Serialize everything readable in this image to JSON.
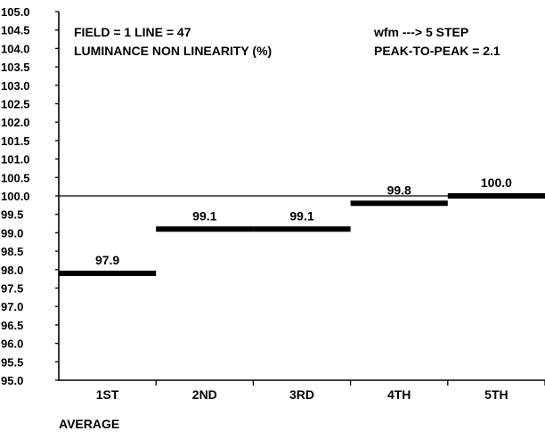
{
  "header": {
    "line1_left": "FIELD = 1 LINE = 47",
    "line2_left": "LUMINANCE NON LINEARITY (%)",
    "line1_right": "wfm ---> 5 STEP",
    "line2_right": "PEAK-TO-PEAK = 2.1"
  },
  "footer": {
    "label": "AVERAGE"
  },
  "colors": {
    "background": "#ffffff",
    "ink": "#000000"
  },
  "chart_data": {
    "type": "bar",
    "style": "step-level bars (horizontal level per category)",
    "categories": [
      "1ST",
      "2ND",
      "3RD",
      "4TH",
      "5TH"
    ],
    "values": [
      97.9,
      99.1,
      99.1,
      99.8,
      100.0
    ],
    "value_labels": [
      "97.9",
      "99.1",
      "99.1",
      "99.8",
      "100.0"
    ],
    "ylim": [
      95.0,
      105.0
    ],
    "y_tick_step": 0.5,
    "y_ticks": [
      "95.0",
      "95.5",
      "96.0",
      "96.5",
      "97.0",
      "97.5",
      "98.0",
      "98.5",
      "99.0",
      "99.5",
      "100.0",
      "100.5",
      "101.0",
      "101.5",
      "102.0",
      "102.5",
      "103.0",
      "103.5",
      "104.0",
      "104.5",
      "105.0"
    ],
    "reference_line": 100.0,
    "grid": false,
    "legend": "none"
  }
}
